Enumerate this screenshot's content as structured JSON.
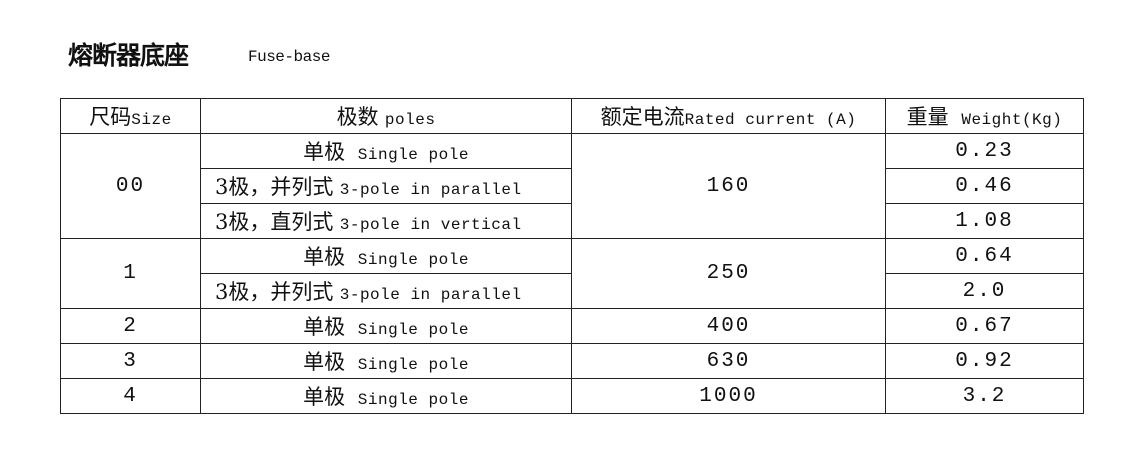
{
  "title": "熔断器底座",
  "subtitle": "Fuse-base",
  "headers": [
    {
      "cn": "尺码",
      "en": "Size"
    },
    {
      "cn": "极数",
      "en": "poles"
    },
    {
      "cn": "额定电流",
      "en": "Rated current (A)"
    },
    {
      "cn": "重量",
      "en": "Weight(Kg)"
    }
  ],
  "groups": [
    {
      "size": "00",
      "current": "160",
      "rows": [
        {
          "pole_cn": "单极",
          "pole_en": "Single pole",
          "weight": "0.23"
        },
        {
          "pole_cn": "3极，并列式",
          "pole_en": "3-pole in parallel",
          "weight": "0.46"
        },
        {
          "pole_cn": "3极，直列式",
          "pole_en": "3-pole in vertical",
          "weight": "1.08"
        }
      ]
    },
    {
      "size": "1",
      "current": "250",
      "rows": [
        {
          "pole_cn": "单极",
          "pole_en": "Single pole",
          "weight": "0.64"
        },
        {
          "pole_cn": "3极，并列式",
          "pole_en": "3-pole in parallel",
          "weight": "2.0"
        }
      ]
    },
    {
      "size": "2",
      "current": "400",
      "rows": [
        {
          "pole_cn": "单极",
          "pole_en": "Single pole",
          "weight": "0.67"
        }
      ]
    },
    {
      "size": "3",
      "current": "630",
      "rows": [
        {
          "pole_cn": "单极",
          "pole_en": "Single pole",
          "weight": "0.92"
        }
      ]
    },
    {
      "size": "4",
      "current": "1000",
      "rows": [
        {
          "pole_cn": "单极",
          "pole_en": "Single pole",
          "weight": "3.2"
        }
      ]
    }
  ]
}
